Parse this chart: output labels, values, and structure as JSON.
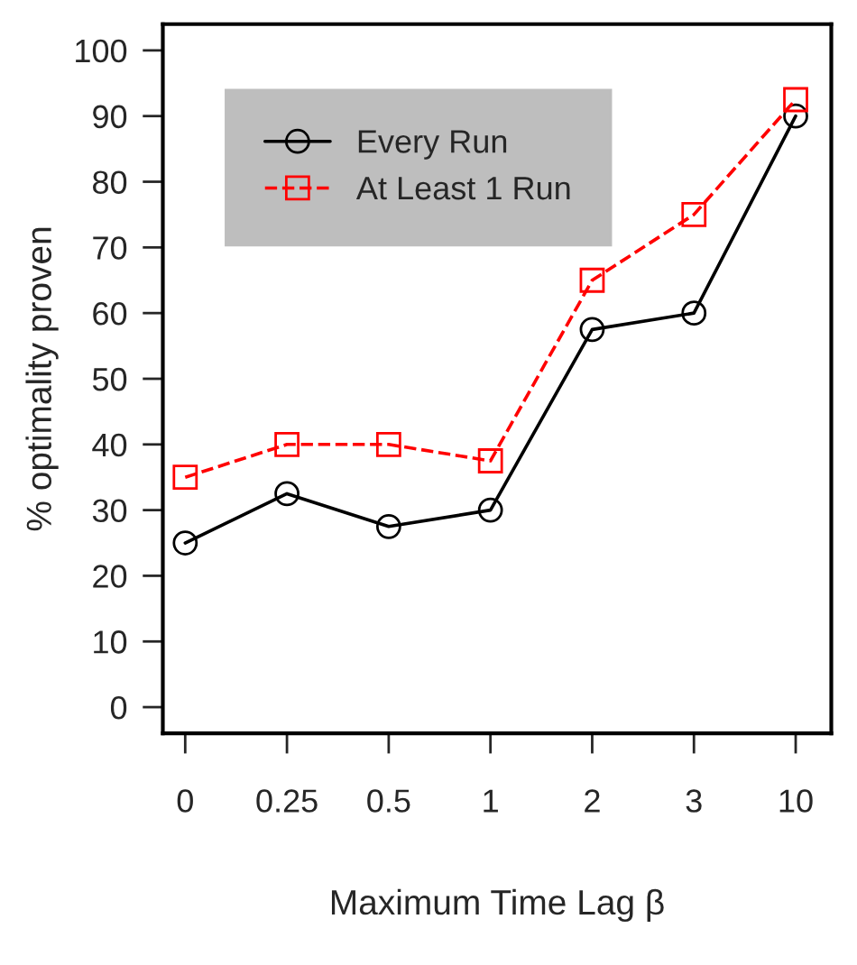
{
  "chart_data": {
    "type": "line",
    "xlabel": "Maximum Time Lag β",
    "ylabel": "% optimality proven",
    "categories": [
      "0",
      "0.25",
      "0.5",
      "1",
      "2",
      "3",
      "10"
    ],
    "series": [
      {
        "name": "Every Run",
        "color": "#000000",
        "marker": "circle",
        "line_style": "solid",
        "values": [
          25,
          32.5,
          27.5,
          30,
          57.5,
          60,
          90
        ]
      },
      {
        "name": "At Least 1 Run",
        "color": "#ff0000",
        "marker": "square",
        "line_style": "dashed",
        "values": [
          35,
          40,
          40,
          37.5,
          65,
          75,
          92.5
        ]
      }
    ],
    "ylim": [
      -4,
      104
    ],
    "yticks": [
      0,
      10,
      20,
      30,
      40,
      50,
      60,
      70,
      80,
      90,
      100
    ],
    "grid": false,
    "legend": "top left"
  }
}
